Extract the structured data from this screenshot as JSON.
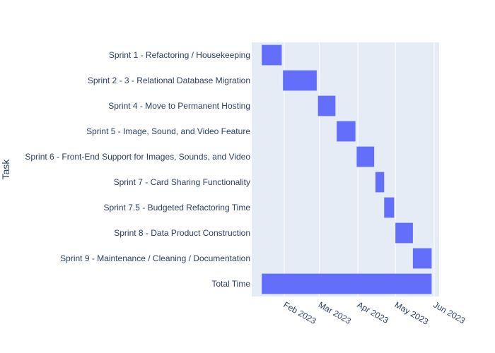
{
  "chart_data": {
    "type": "bar",
    "orientation": "horizontal",
    "ylabel": "Task",
    "grid": true,
    "bar_color": "#636efa",
    "plot_bgcolor": "#e5ecf6",
    "x_ticks": [
      {
        "date": "2023-02-01",
        "label": "Feb 2023"
      },
      {
        "date": "2023-03-01",
        "label": "Mar 2023"
      },
      {
        "date": "2023-04-01",
        "label": "Apr 2023"
      },
      {
        "date": "2023-05-01",
        "label": "May 2023"
      },
      {
        "date": "2023-06-01",
        "label": "Jun 2023"
      }
    ],
    "xlim": [
      "2023-01-06",
      "2023-06-05"
    ],
    "tasks": [
      {
        "name": "Sprint 1 - Refactoring / Housekeeping",
        "start": "2023-01-14",
        "end": "2023-01-30"
      },
      {
        "name": "Sprint 2 - 3 - Relational Database Migration",
        "start": "2023-01-31",
        "end": "2023-02-27"
      },
      {
        "name": "Sprint 4 - Move to Permanent Hosting",
        "start": "2023-02-28",
        "end": "2023-03-14"
      },
      {
        "name": "Sprint 5 - Image, Sound, and Video Feature",
        "start": "2023-03-15",
        "end": "2023-03-30"
      },
      {
        "name": "Sprint 6 - Front-End Support for Images, Sounds, and Video",
        "start": "2023-03-31",
        "end": "2023-04-14"
      },
      {
        "name": "Sprint 7 - Card Sharing Functionality",
        "start": "2023-04-15",
        "end": "2023-04-22"
      },
      {
        "name": "Sprint 7.5 - Budgeted Refactoring Time",
        "start": "2023-04-22",
        "end": "2023-04-30"
      },
      {
        "name": "Sprint 8 - Data Product Construction",
        "start": "2023-05-01",
        "end": "2023-05-15"
      },
      {
        "name": "Sprint 9 - Maintenance / Cleaning / Documentation",
        "start": "2023-05-15",
        "end": "2023-05-30"
      },
      {
        "name": "Total Time",
        "start": "2023-01-14",
        "end": "2023-05-30"
      }
    ]
  }
}
